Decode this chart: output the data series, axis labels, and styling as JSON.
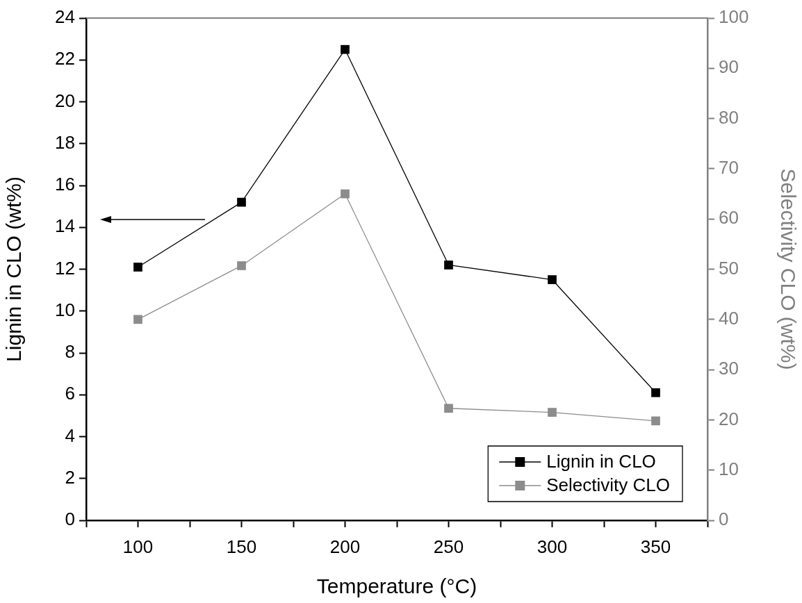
{
  "chart_data": {
    "type": "line",
    "xlabel": "Temperature (°C)",
    "ylabel": "Lignin in CLO (wt%)",
    "y2label": "Selectivity CLO (wt%)",
    "x": [
      100,
      150,
      200,
      250,
      300,
      350
    ],
    "series": [
      {
        "name": "Lignin in CLO",
        "color": "#000000",
        "values": [
          12.1,
          15.2,
          22.5,
          12.2,
          11.5,
          6.1
        ]
      },
      {
        "name": "Selectivity CLO",
        "color": "#8c8c8c",
        "axis": "y2",
        "values": [
          40,
          50.7,
          65,
          22.3,
          21.5,
          19.8
        ]
      }
    ],
    "xlim": [
      75,
      375
    ],
    "xticks": [
      {
        "value": 75,
        "label": null
      },
      100,
      {
        "value": 125,
        "label": null
      },
      150,
      {
        "value": 175,
        "label": null
      },
      200,
      {
        "value": 225,
        "label": null
      },
      250,
      {
        "value": 275,
        "label": null
      },
      300,
      {
        "value": 325,
        "label": null
      },
      350,
      {
        "value": 375,
        "label": null
      }
    ],
    "ylim": [
      0,
      24
    ],
    "yticks": [
      0,
      2,
      4,
      6,
      8,
      10,
      12,
      14,
      16,
      18,
      20,
      22,
      24
    ],
    "y2lim": [
      0,
      100
    ],
    "y2ticks": [
      0,
      10,
      20,
      30,
      40,
      50,
      60,
      70,
      80,
      90,
      100
    ],
    "legend": "bottom right",
    "marker": "square",
    "line_style": "solid"
  }
}
